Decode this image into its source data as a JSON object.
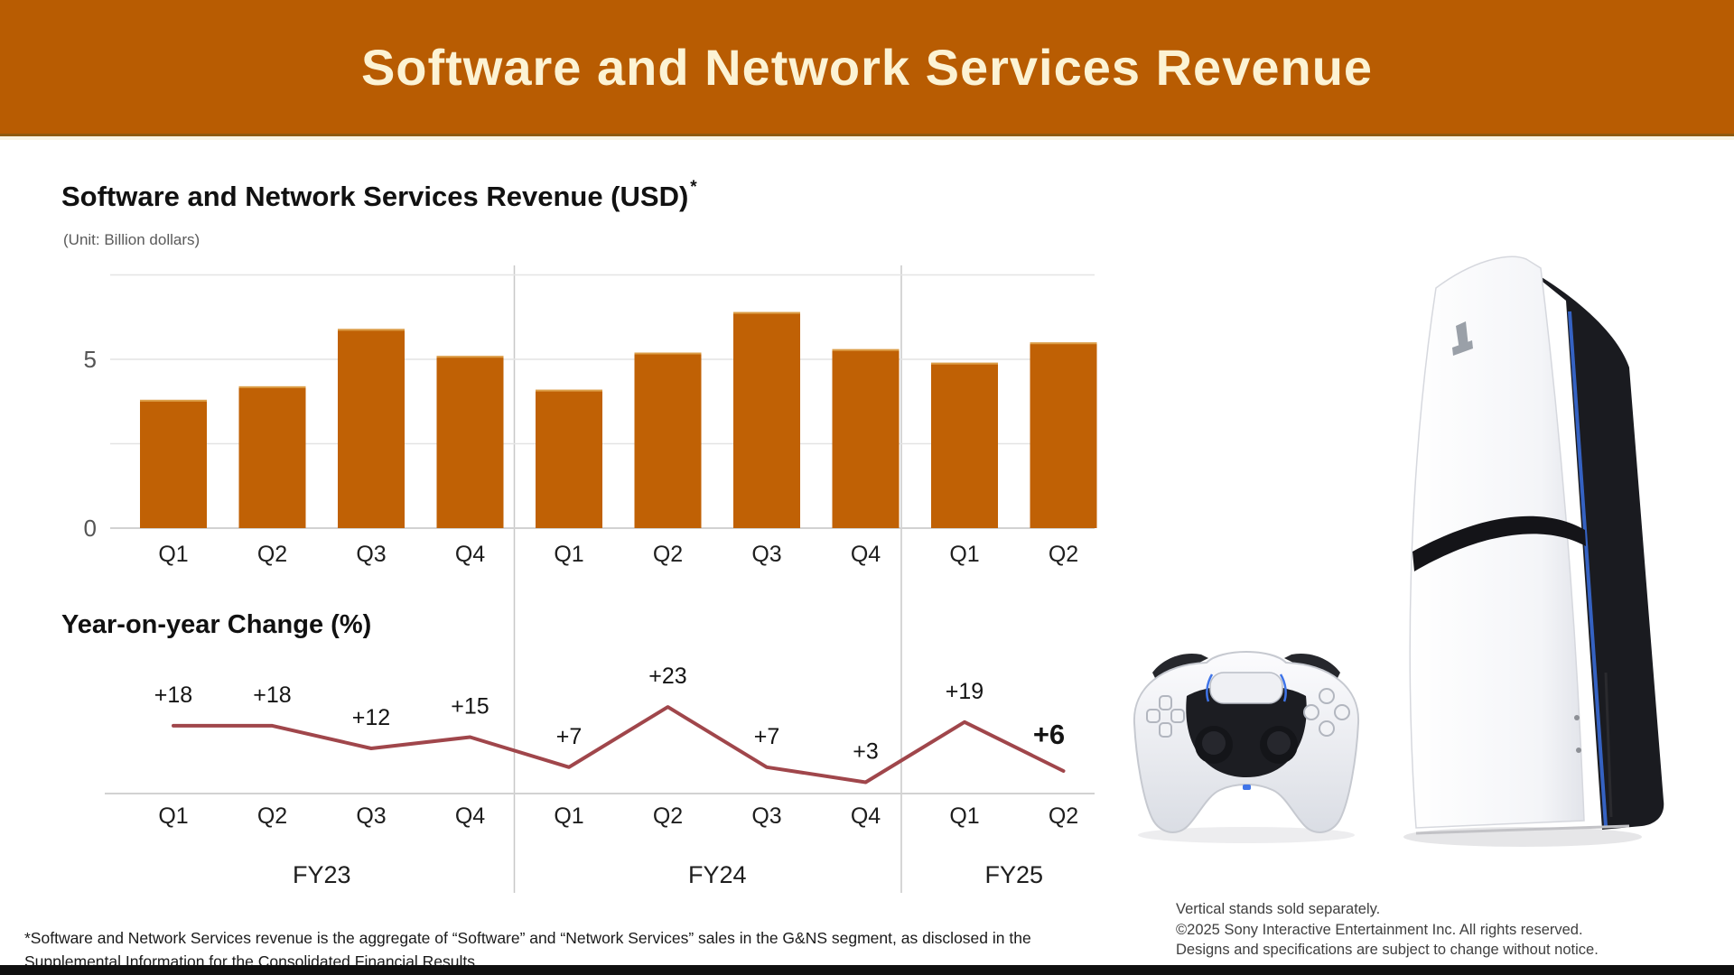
{
  "banner": {
    "title": "Software and Network Services Revenue",
    "bg_color": "#b85c02",
    "text_color": "#fcf3d4"
  },
  "section": {
    "title": "Software and Network Services Revenue (USD)",
    "superscript": "*",
    "unit": "(Unit: Billion dollars)"
  },
  "chart_data": [
    {
      "type": "bar",
      "title": "Software and Network Services Revenue (USD)",
      "unit_label": "(Unit: Billion dollars)",
      "categories": [
        "Q1",
        "Q2",
        "Q3",
        "Q4",
        "Q1",
        "Q2",
        "Q3",
        "Q4",
        "Q1",
        "Q2"
      ],
      "group_labels": [
        "FY23",
        "FY24",
        "FY25"
      ],
      "group_spans": [
        4,
        4,
        2
      ],
      "values": [
        3.8,
        4.2,
        5.9,
        5.1,
        4.1,
        5.2,
        6.4,
        5.3,
        4.9,
        5.5
      ],
      "ylim": [
        0,
        7.5
      ],
      "yticks_labeled": [
        0,
        5
      ],
      "gridlines": [
        0,
        2.5,
        5,
        7.5
      ],
      "grid_on": true,
      "legend": "none",
      "bar_color": "#c06105",
      "bar_edge_color": "#e8b863"
    },
    {
      "type": "line",
      "title": "Year-on-year Change (%)",
      "categories": [
        "Q1",
        "Q2",
        "Q3",
        "Q4",
        "Q1",
        "Q2",
        "Q3",
        "Q4",
        "Q1",
        "Q2"
      ],
      "group_labels": [
        "FY23",
        "FY24",
        "FY25"
      ],
      "values": [
        18,
        18,
        12,
        15,
        7,
        23,
        7,
        3,
        19,
        6
      ],
      "point_labels": [
        "+18",
        "+18",
        "+12",
        "+15",
        "+7",
        "+23",
        "+7",
        "+3",
        "+19",
        "+6"
      ],
      "last_label_bold": true,
      "line_color": "#a0464b",
      "baseline_value": 0,
      "legend": "none"
    }
  ],
  "axis_colors": {
    "gridline": "#e4e4e4",
    "baseline": "#d2d2d2",
    "separator": "#c8c8c8",
    "tick_text": "#555555",
    "label_text": "#1e1e1e"
  },
  "footnote": {
    "line1": "*Software and Network Services revenue is the aggregate of “Software” and “Network Services” sales in the G&NS segment, as disclosed in the",
    "line2": "Supplemental Information for the Consolidated Financial Results."
  },
  "product_note": {
    "line1": "Vertical stands sold separately.",
    "line2": "©2025 Sony Interactive Entertainment Inc. All rights reserved.",
    "line3": "Designs and specifications are subject to change without notice."
  },
  "product_images": {
    "console": "playstation5-slim-console",
    "controller": "dualsense-controller"
  }
}
